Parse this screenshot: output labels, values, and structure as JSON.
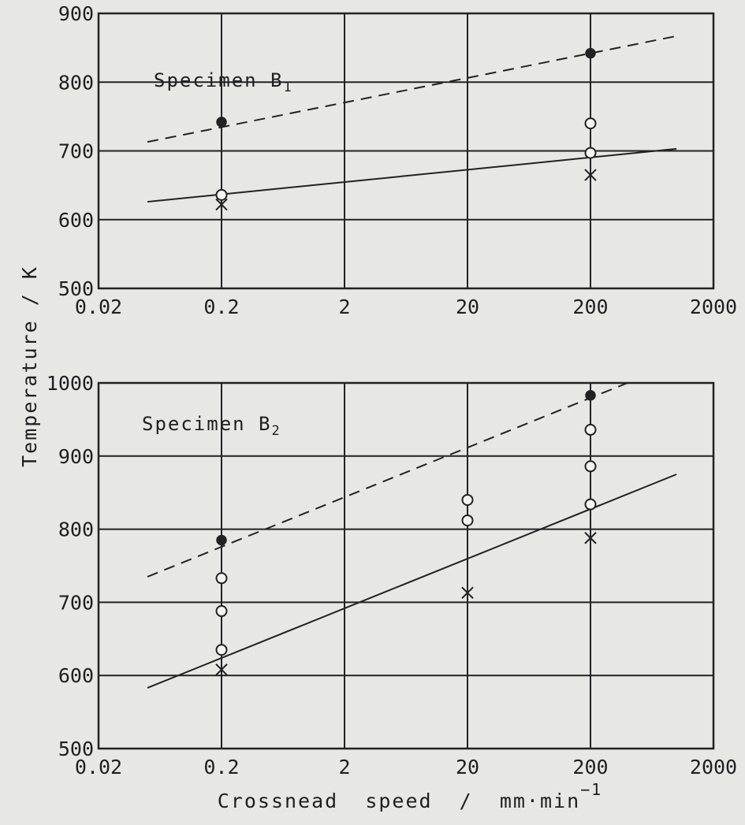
{
  "chart_data": [
    {
      "type": "scatter",
      "panel": "Specimen B1",
      "title": "Specimen",
      "title_sub": "B1",
      "x_scale": "log",
      "x_ticks": [
        "0.02",
        "0.2",
        "2",
        "20",
        "200",
        "2000"
      ],
      "xlim": [
        0.02,
        2000
      ],
      "ylim": [
        500,
        900
      ],
      "y_ticks": [
        "500",
        "600",
        "700",
        "800",
        "900"
      ],
      "grid": true,
      "series": [
        {
          "marker": "filled-circle",
          "points": [
            [
              0.2,
              742
            ],
            [
              200,
              842
            ]
          ]
        },
        {
          "marker": "open-circle",
          "points": [
            [
              0.2,
              636
            ],
            [
              200,
              740
            ],
            [
              200,
              697
            ]
          ]
        },
        {
          "marker": "cross",
          "points": [
            [
              0.2,
              622
            ],
            [
              200,
              665
            ]
          ]
        }
      ],
      "fit_lines": [
        {
          "style": "dashed",
          "points": [
            [
              0.05,
              713
            ],
            [
              1000,
              867
            ]
          ]
        },
        {
          "style": "solid",
          "points": [
            [
              0.05,
              626
            ],
            [
              1000,
              703
            ]
          ]
        }
      ]
    },
    {
      "type": "scatter",
      "panel": "Specimen B2",
      "title": "Specimen",
      "title_sub": "B2",
      "x_scale": "log",
      "x_ticks": [
        "0.02",
        "0.2",
        "2",
        "20",
        "200",
        "2000"
      ],
      "xlim": [
        0.02,
        2000
      ],
      "ylim": [
        500,
        1000
      ],
      "y_ticks": [
        "500",
        "600",
        "700",
        "800",
        "900",
        "1000"
      ],
      "grid": true,
      "series": [
        {
          "marker": "filled-circle",
          "points": [
            [
              0.2,
              785
            ],
            [
              200,
              983
            ]
          ]
        },
        {
          "marker": "open-circle",
          "points": [
            [
              0.2,
              733
            ],
            [
              0.2,
              688
            ],
            [
              0.2,
              635
            ],
            [
              20,
              840
            ],
            [
              20,
              812
            ],
            [
              200,
              936
            ],
            [
              200,
              886
            ],
            [
              200,
              834
            ]
          ]
        },
        {
          "marker": "cross",
          "points": [
            [
              0.2,
              608
            ],
            [
              20,
              713
            ],
            [
              200,
              788
            ]
          ]
        }
      ],
      "fit_lines": [
        {
          "style": "dashed",
          "points": [
            [
              0.05,
              735
            ],
            [
              400,
              1000
            ]
          ]
        },
        {
          "style": "solid",
          "points": [
            [
              0.05,
              583
            ],
            [
              1000,
              875
            ]
          ]
        }
      ]
    }
  ],
  "y_axis_label": "Temperature  /  K",
  "x_axis_label": "Crossnead  speed  /  mm·min",
  "x_axis_label_sup": "−1"
}
